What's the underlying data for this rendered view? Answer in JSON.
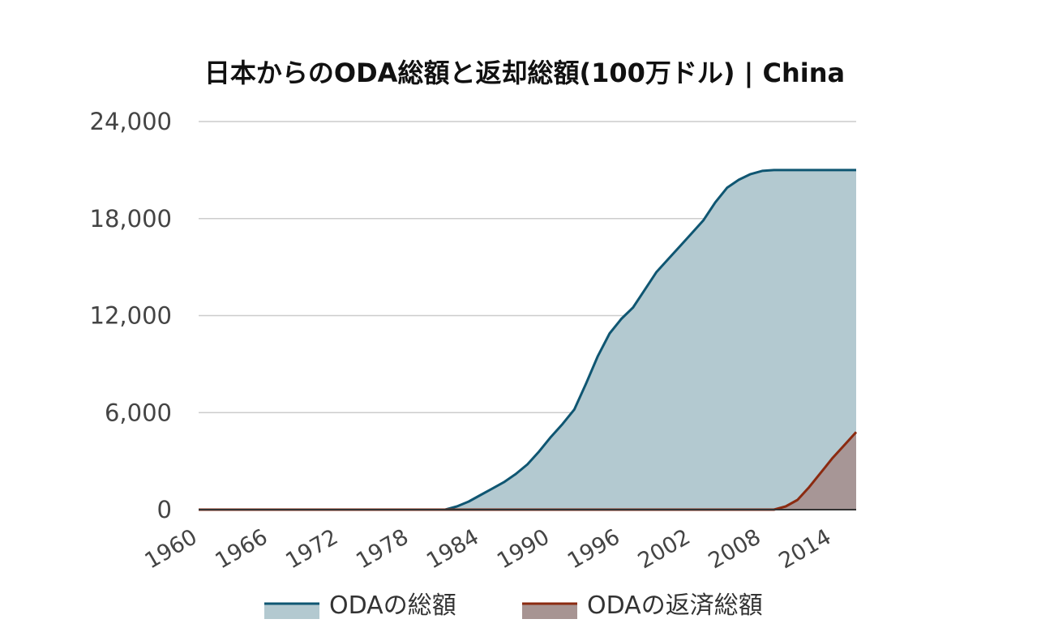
{
  "chart_data": {
    "type": "area",
    "title": "日本からのODA総額と返却総額(100万ドル) | China",
    "xlabel": "",
    "ylabel": "",
    "ylim": [
      0,
      24000
    ],
    "xlim": [
      1960,
      2016
    ],
    "y_ticks": [
      0,
      6000,
      12000,
      18000,
      24000
    ],
    "y_tick_labels": [
      "0",
      "6,000",
      "12,000",
      "18,000",
      "24,000"
    ],
    "x_ticks": [
      1960,
      1966,
      1972,
      1978,
      1984,
      1990,
      1996,
      2002,
      2008,
      2014
    ],
    "x_tick_labels": [
      "1960",
      "1966",
      "1972",
      "1978",
      "1984",
      "1990",
      "1996",
      "2002",
      "2008",
      "2014"
    ],
    "grid": true,
    "legend_position": "bottom",
    "series": [
      {
        "name": "ODAの総額",
        "color": "#0f5672",
        "fill": "#b3c9d0",
        "x": [
          1960,
          1979,
          1980,
          1981,
          1982,
          1983,
          1984,
          1985,
          1986,
          1987,
          1988,
          1989,
          1990,
          1991,
          1992,
          1993,
          1994,
          1995,
          1996,
          1997,
          1998,
          1999,
          2000,
          2001,
          2002,
          2003,
          2004,
          2005,
          2006,
          2007,
          2008,
          2009,
          2010,
          2011,
          2012,
          2013,
          2014,
          2015,
          2016
        ],
        "values": [
          0,
          0,
          0,
          0,
          200,
          500,
          900,
          1300,
          1700,
          2200,
          2800,
          3600,
          4500,
          5300,
          6200,
          7800,
          9500,
          10900,
          11800,
          12500,
          13600,
          14700,
          15500,
          16300,
          17100,
          17900,
          19000,
          19900,
          20400,
          20750,
          20950,
          21000,
          21000,
          21000,
          21000,
          21000,
          21000,
          21000,
          21000
        ]
      },
      {
        "name": "ODAの返済総額",
        "color": "#8b2a10",
        "fill": "#a79492",
        "x": [
          1960,
          2008,
          2009,
          2010,
          2011,
          2012,
          2013,
          2014,
          2015,
          2016
        ],
        "values": [
          0,
          0,
          0,
          200,
          600,
          1400,
          2300,
          3200,
          4000,
          4800
        ]
      }
    ]
  }
}
